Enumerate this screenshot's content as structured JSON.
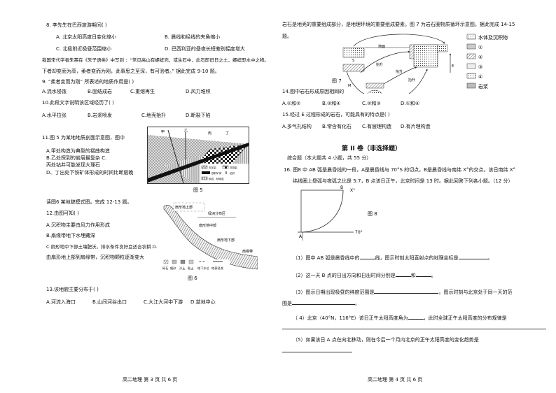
{
  "left_page": {
    "q8": {
      "stem": "8.  李先生在巴西旅游期间(          )",
      "options": [
        "A. 北京太阳高度日变化缩小",
        "B. 晨线和经线的夹角缩小",
        "C. 北极附近极昼范围缩小",
        "D. 巴西利亚的昼夜长短差别幅度增大"
      ]
    },
    "passage_9_10": [
      "我国宋代学者朱熹在《朱子语类》中写到 ：“常见高山有螺蚌壳，或生石中，此石即旧日之土，螺蚌即水中之物。",
      "下者却变而为高，柔者变而为刚，此事思之至深，有可验者。” 据此完成 9-10 题。"
    ],
    "q9": {
      "stem": "9. “柔者变而为刚” 所表述的地质作用是(          )",
      "options": [
        "A.流水侵蚀",
        "B.固结成岩",
        "C.重熔再生",
        "D.风力堆积"
      ]
    },
    "q10": {
      "stem": "10.此段文字说明该区域经历了(          )",
      "options": [
        "A.水平拉张",
        "B.岩浆喷发",
        "C.地壳抬升",
        "D.断裂下陷"
      ]
    },
    "q11": {
      "stem": "11.图 5 为某地地质剖面示意图，图中",
      "options": [
        "A.甲处构造为典型的褶曲构造",
        "B.乙处探到的岩层最复杂 C.",
        "丙处钻井可能发现大理石",
        "D、丁出处下铁矿体形成的时间比断层晚"
      ]
    },
    "fig5": {
      "caption": "图 5",
      "labels": [
        "甲",
        "乙",
        "丙",
        "丁"
      ],
      "legend": [
        "石灰岩",
        "花岗岩",
        "铁矿矿体",
        "钻井",
        "砂岩、砂砾岩"
      ]
    },
    "intro_12_13": "读图6 某地貌模式图。完成 12-13 题。",
    "q12": {
      "stem": "12.由图可知(          )",
      "options": [
        "A.沉积物主要由风力作用形成",
        "B.扇缘带地下水埋藏深",
        "C.扇形地中下部土壤肥沃，排水条件良好且适合农耕  D.",
        "由扇形地上部到扇缘带，沉积物颗粒逐渐变大"
      ]
    },
    "fig6": {
      "caption": "图 6",
      "labels": [
        "扇形地上部",
        "绿洲分布区",
        "扇形地中部",
        "扇形地下部",
        "扇缘带"
      ],
      "legend": [
        "砾石",
        "细砂",
        "沙土",
        "粘土",
        "地下水位",
        "地表径流"
      ]
    },
    "q13": {
      "stem": "13.该地貌主要分布于(          )",
      "options": [
        "A.河流入海口",
        "B.山间河谷出口",
        "C.大江大河中下游",
        "D.盆地中心"
      ]
    },
    "footer": "高二地理      第 3 页    共 6 页"
  },
  "right_page": {
    "intro_14_15": [
      "岩石是地壳的重要组成部分，是地理环境的重要组成要素。图 7 为岩石圈物质循环示意图。据此完成 14-15",
      "题。"
    ],
    "fig7": {
      "caption": "图 7",
      "labels": [
        "地面",
        "抬升",
        "抬升",
        "抬升",
        "结晶",
        "S",
        "M",
        "E"
      ],
      "legend": [
        "水体及沉积物",
        "①",
        "②",
        "③",
        "④",
        "岩浆"
      ]
    },
    "q14": {
      "stem": "14.图中岩石形成原因相同的",
      "options": [
        "A.①和②",
        "B.③和④",
        "C.②和③",
        "D.①和④"
      ]
    },
    "q15": {
      "stem": "15.经过 E 过程形成的岩石，可能具有的特点是(          )",
      "options": [
        "A.多气孔结构",
        "B.常含有化石",
        "C.有层理构造",
        "D.有片理构造"
      ]
    },
    "section_title": "第 II 卷（非选择题）",
    "section_sub": "综合题（本大题共 4 小题，共 55 分）",
    "q16": {
      "stem": [
        "16.  图8 中 AB 弧是晨昏线的一段，A是晨昏线与 70°S 的切点，B是晨昏线与南纬 X°的交点。该日南纬 X°",
        "纬线圈上昼弧与夜弧之比是 5:7，B 点该日正午，北京时间是 13 时。据此回答下列各小题。（12 分）"
      ]
    },
    "fig8": {
      "caption": "图 8",
      "labels": [
        "B",
        "X°",
        "A",
        "70°"
      ]
    },
    "sub_questions": {
      "s1": [
        "（1）图中 AB 弧是晨昏线中的",
        "线，图示时刻太阳直射点的地理坐标是",
        "。"
      ],
      "s2": [
        "（2）这一天 B 点的日出方向和日出时间分别是",
        "和",
        "。"
      ],
      "s3": [
        "（3）图示日期出现极昼的纬度范围是",
        "。图示时刻与北京处于同一天的范",
        "围是",
        "。"
      ],
      "s4": [
        "（ 4）北京（40°N，116°E）该日正午太阳高度角为",
        "，此时全球正午太阳高度的分布规律是"
      ],
      "s5": [
        "（5）如果该日 A 点在向北移动，则在今后一个月内北京的正午太阳高度的变化趋势是"
      ]
    },
    "footer": "高二地理      第 4 页    共 6 页"
  }
}
